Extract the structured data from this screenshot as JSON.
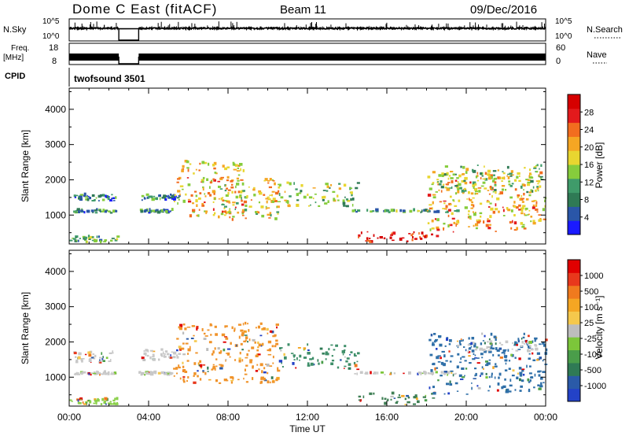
{
  "header": {
    "title": "Dome C East (fitACF)",
    "beam": "Beam 11",
    "date": "09/Dec/2016"
  },
  "top_panels": {
    "nsky_label": "N.Sky",
    "nsky_ticks": [
      "10^5",
      "10^0"
    ],
    "nsearch_label": "N.Search",
    "freq_label_1": "Freq.",
    "freq_label_2": "[MHz]",
    "freq_ticks": [
      "18",
      "8"
    ],
    "nave_ticks": [
      "60",
      "0"
    ],
    "nave_label": "Nave",
    "cpid_label": "CPID",
    "cpid_value": "twofsound 3501",
    "data_gap_hours": [
      2.5,
      3.5
    ]
  },
  "chart_data": [
    {
      "type": "heatmap",
      "name": "Power",
      "ylabel": "Slant Range [km]",
      "xlabel": "",
      "x_ticks": [
        "00:00",
        "04:00",
        "08:00",
        "12:00",
        "16:00",
        "20:00",
        "00:00"
      ],
      "xlim_hours": [
        0,
        24
      ],
      "y_ticks": [
        1000,
        2000,
        3000,
        4000
      ],
      "ylim_km": [
        180,
        4600
      ],
      "colorbar_label": "Power [dB]",
      "colorbar_ticks": [
        "28",
        "24",
        "20",
        "16",
        "12",
        "8",
        "4"
      ],
      "colorbar_range": [
        0,
        32
      ],
      "colorbar_colors": [
        "#1a1aff",
        "#2a56a8",
        "#2f7a55",
        "#3f9b6a",
        "#86cc3c",
        "#e8d630",
        "#f5a623",
        "#f26d1f",
        "#e31a1c",
        "#d60000"
      ],
      "echo_regions": [
        {
          "t0": 0.2,
          "t1": 2.3,
          "r0": 1380,
          "r1": 1560,
          "level": 8
        },
        {
          "t0": 0.2,
          "t1": 2.3,
          "r0": 1040,
          "r1": 1120,
          "level": 9
        },
        {
          "t0": 3.4,
          "t1": 5.2,
          "r0": 1040,
          "r1": 1120,
          "level": 9
        },
        {
          "t0": 3.6,
          "t1": 5.5,
          "r0": 1400,
          "r1": 1550,
          "level": 8
        },
        {
          "t0": 5.2,
          "t1": 8.8,
          "r0": 900,
          "r1": 2500,
          "level": 20
        },
        {
          "t0": 7.5,
          "t1": 10.5,
          "r0": 800,
          "r1": 2000,
          "level": 18
        },
        {
          "t0": 10.5,
          "t1": 14.5,
          "r0": 1200,
          "r1": 1900,
          "level": 14
        },
        {
          "t0": 14.2,
          "t1": 19.5,
          "r0": 1050,
          "r1": 1110,
          "level": 10
        },
        {
          "t0": 14.5,
          "t1": 18.5,
          "r0": 200,
          "r1": 520,
          "level": 30
        },
        {
          "t0": 18.0,
          "t1": 24.0,
          "r0": 500,
          "r1": 2200,
          "level": 20
        },
        {
          "t0": 18.5,
          "t1": 23.8,
          "r0": 1600,
          "r1": 2400,
          "level": 14
        },
        {
          "t0": 0.0,
          "t1": 2.4,
          "r0": 200,
          "r1": 360,
          "level": 12
        }
      ]
    },
    {
      "type": "heatmap",
      "name": "Velocity",
      "ylabel": "Slant Range [km]",
      "xlabel": "Time UT",
      "x_ticks": [
        "00:00",
        "04:00",
        "08:00",
        "12:00",
        "16:00",
        "20:00",
        "00:00"
      ],
      "xlim_hours": [
        0,
        24
      ],
      "y_ticks": [
        1000,
        2000,
        3000,
        4000
      ],
      "ylim_km": [
        180,
        4600
      ],
      "colorbar_label": "Velocity [m s⁻¹]",
      "colorbar_ticks": [
        "1000",
        "500",
        "100",
        "25",
        "-25",
        "-100",
        "-500",
        "-1000"
      ],
      "colorbar_colors": [
        "#2342c7",
        "#2a5aa8",
        "#2f7a55",
        "#4a9d4a",
        "#7cc63a",
        "#bdbdbd",
        "#f5c84c",
        "#f5a623",
        "#f07a1e",
        "#e8381c",
        "#e00000"
      ],
      "echo_regions": [
        {
          "t0": 0.2,
          "t1": 2.3,
          "r0": 1380,
          "r1": 1700,
          "color": "#c8c8c8"
        },
        {
          "t0": 0.2,
          "t1": 2.3,
          "r0": 1040,
          "r1": 1120,
          "color": "#c8c8c8"
        },
        {
          "t0": 3.4,
          "t1": 5.2,
          "r0": 1040,
          "r1": 1120,
          "color": "#c8c8c8"
        },
        {
          "t0": 3.6,
          "t1": 5.5,
          "r0": 1450,
          "r1": 1750,
          "color": "#c8c8c8"
        },
        {
          "t0": 5.2,
          "t1": 10.5,
          "r0": 800,
          "r1": 2500,
          "color": "#f0932a"
        },
        {
          "t0": 10.5,
          "t1": 14.5,
          "r0": 1200,
          "r1": 1900,
          "color": "#3f8f6a"
        },
        {
          "t0": 14.2,
          "t1": 19.5,
          "r0": 1050,
          "r1": 1110,
          "color": "#c8c8c8"
        },
        {
          "t0": 14.5,
          "t1": 18.5,
          "r0": 200,
          "r1": 520,
          "color": "#3f7f55"
        },
        {
          "t0": 18.0,
          "t1": 24.0,
          "r0": 500,
          "r1": 2200,
          "color": "#2f6fa8"
        },
        {
          "t0": 19.5,
          "t1": 23.5,
          "r0": 1700,
          "r1": 2000,
          "color": "#c8c8c8"
        },
        {
          "t0": 0.0,
          "t1": 2.4,
          "r0": 200,
          "r1": 360,
          "color": "#8bd04a"
        }
      ]
    }
  ]
}
